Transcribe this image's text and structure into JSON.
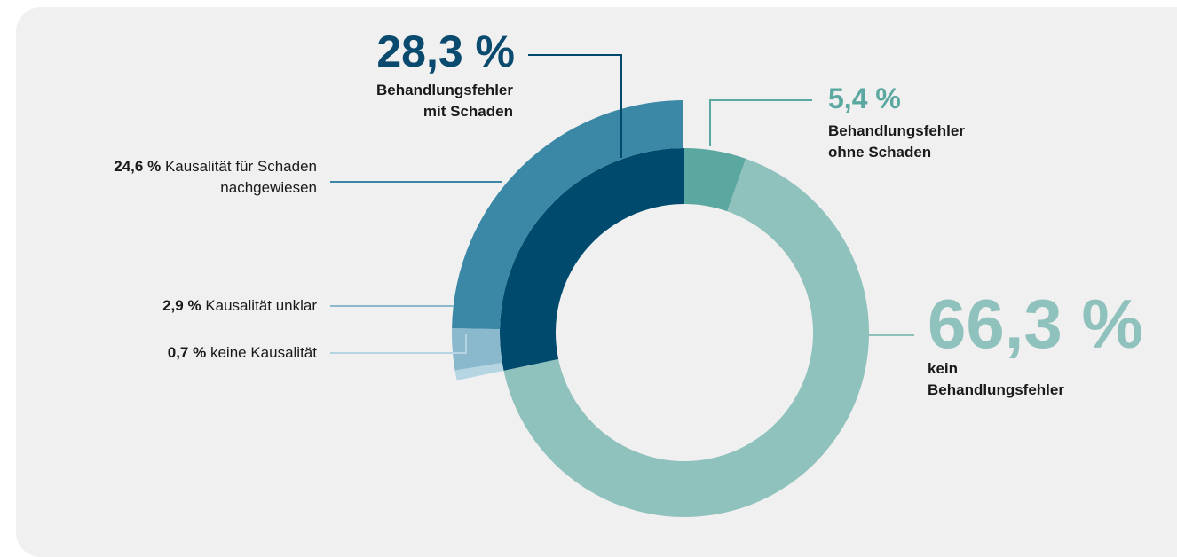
{
  "chart_data": {
    "type": "donut",
    "rings": [
      {
        "categories": [
          "Behandlungsfehler ohne Schaden",
          "kein Behandlungsfehler",
          "Behandlungsfehler mit Schaden"
        ],
        "values": [
          5.4,
          66.3,
          28.3
        ],
        "value_labels": [
          "5,4 %",
          "66,3 %",
          "28,3 %"
        ],
        "colors": [
          "#5ba8a0",
          "#8fc1bd",
          "#004a6e"
        ]
      },
      {
        "parent": 2,
        "categories": [
          "keine Kausalität",
          "Kausalität unklar",
          "Kausalität für Schaden nachgewiesen"
        ],
        "values": [
          0.7,
          2.9,
          24.6
        ],
        "value_labels": [
          "0,7 %",
          "2,9 %",
          "24,6 %"
        ],
        "colors": [
          "#b5d5e2",
          "#8ab8cc",
          "#3a88a6"
        ]
      }
    ]
  }
}
